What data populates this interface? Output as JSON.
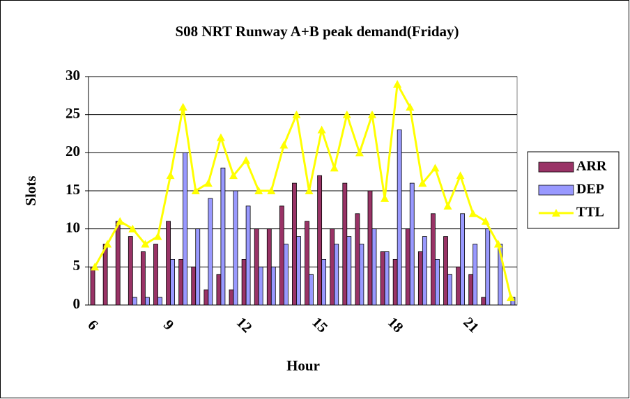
{
  "chart_data": {
    "type": "bar_line",
    "title": "S08 NRT Runway A+B peak demand(Friday)",
    "xlabel": "Hour",
    "ylabel": "Slots",
    "categories": [
      "6",
      null,
      null,
      null,
      null,
      null,
      "9",
      null,
      null,
      null,
      null,
      null,
      "12",
      null,
      null,
      null,
      null,
      null,
      "15",
      null,
      null,
      null,
      null,
      null,
      "18",
      null,
      null,
      null,
      null,
      null,
      "21",
      null,
      null,
      null
    ],
    "series": [
      {
        "name": "ARR",
        "type": "bar",
        "color": "#993366",
        "values": [
          5,
          8,
          11,
          9,
          7,
          8,
          11,
          6,
          5,
          2,
          4,
          2,
          6,
          10,
          10,
          13,
          16,
          11,
          17,
          10,
          16,
          12,
          15,
          7,
          6,
          10,
          7,
          12,
          9,
          5,
          4,
          1,
          0,
          0
        ]
      },
      {
        "name": "DEP",
        "type": "bar",
        "color": "#9999ff",
        "values": [
          0,
          0,
          0,
          1,
          1,
          1,
          6,
          20,
          10,
          14,
          18,
          15,
          13,
          5,
          5,
          8,
          9,
          4,
          6,
          8,
          9,
          8,
          10,
          7,
          23,
          16,
          9,
          6,
          4,
          12,
          8,
          10,
          8,
          1
        ]
      },
      {
        "name": "TTL",
        "type": "line",
        "color": "#ffff00",
        "values": [
          5,
          8,
          11,
          10,
          8,
          9,
          17,
          26,
          15,
          16,
          22,
          17,
          19,
          15,
          15,
          21,
          25,
          15,
          23,
          18,
          25,
          20,
          25,
          14,
          29,
          26,
          16,
          18,
          13,
          17,
          12,
          11,
          8,
          1
        ]
      }
    ],
    "ylim": [
      0,
      30
    ],
    "yticks": [
      0,
      5,
      10,
      15,
      20,
      25,
      30
    ],
    "grid": true,
    "legend": "right"
  }
}
